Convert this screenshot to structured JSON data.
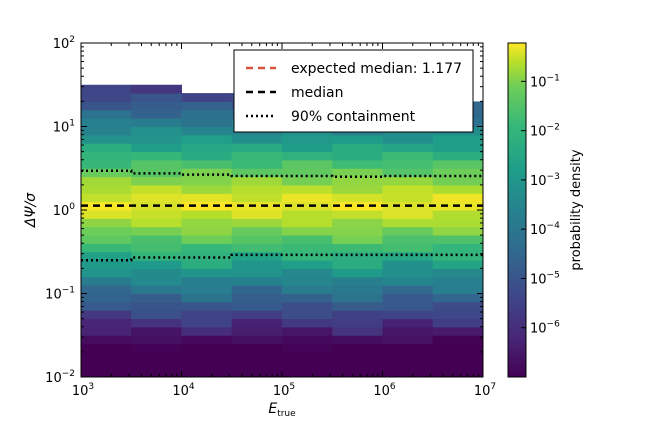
{
  "chart_data": {
    "type": "heatmap",
    "title": "",
    "xlabel": "E_true",
    "ylabel": "ΔΨ/σ",
    "x_scale": "log",
    "y_scale": "log",
    "xlim": [
      1000,
      10000000
    ],
    "ylim": [
      0.01,
      100
    ],
    "x_ticks": [
      {
        "value": 1000,
        "base": "10",
        "exp": "3"
      },
      {
        "value": 10000,
        "base": "10",
        "exp": "4"
      },
      {
        "value": 100000,
        "base": "10",
        "exp": "5"
      },
      {
        "value": 1000000,
        "base": "10",
        "exp": "6"
      },
      {
        "value": 10000000,
        "base": "10",
        "exp": "7"
      }
    ],
    "y_ticks": [
      {
        "value": 0.01,
        "base": "10",
        "exp": "−2"
      },
      {
        "value": 0.1,
        "base": "10",
        "exp": "−1"
      },
      {
        "value": 1,
        "base": "10",
        "exp": "0"
      },
      {
        "value": 10,
        "base": "10",
        "exp": "1"
      },
      {
        "value": 100,
        "base": "10",
        "exp": "2"
      }
    ],
    "colorbar": {
      "label": "probability density",
      "scale": "log",
      "colormap": "viridis",
      "range": [
        1e-07,
        0.6
      ],
      "ticks": [
        {
          "value": 1e-06,
          "base": "10",
          "exp": "−6"
        },
        {
          "value": 1e-05,
          "base": "10",
          "exp": "−5"
        },
        {
          "value": 0.0001,
          "base": "10",
          "exp": "−4"
        },
        {
          "value": 0.001,
          "base": "10",
          "exp": "−3"
        },
        {
          "value": 0.01,
          "base": "10",
          "exp": "−2"
        },
        {
          "value": 0.1,
          "base": "10",
          "exp": "−1"
        }
      ]
    },
    "heatmap": {
      "x_bin_edges_log10": [
        3.0,
        3.5,
        4.0,
        4.5,
        5.0,
        5.5,
        6.0,
        6.5,
        7.0
      ],
      "y_bin_edges_log10": [
        -2.0,
        -1.9,
        -1.8,
        -1.7,
        -1.6,
        -1.5,
        -1.4,
        -1.3,
        -1.2,
        -1.1,
        -1.0,
        -0.9,
        -0.8,
        -0.7,
        -0.6,
        -0.5,
        -0.4,
        -0.3,
        -0.2,
        -0.1,
        0.0,
        0.1,
        0.2,
        0.3,
        0.4,
        0.5,
        0.6,
        0.7,
        0.8,
        0.9,
        1.0,
        1.1,
        1.2,
        1.3,
        1.4,
        1.5
      ],
      "column_top_log10": [
        1.5,
        1.5,
        1.4,
        1.4,
        1.3,
        1.3,
        1.3,
        1.3
      ],
      "peak_log10_y": 0.07,
      "peak_density": 0.5,
      "falloff_log10_per_decade": 4.0
    },
    "lines": [
      {
        "name": "expected median: 1.177",
        "style": "dashed",
        "color": "#d9533f",
        "y": [
          1.177,
          1.177
        ]
      },
      {
        "name": "median",
        "style": "dashed",
        "color": "#000000",
        "x": [
          1000,
          10000000
        ],
        "y": [
          1.13,
          1.13
        ]
      },
      {
        "name": "90% containment",
        "style": "dotted",
        "color": "#000000",
        "x": [
          1000,
          3162,
          3162,
          10000,
          10000,
          31623,
          31623,
          100000,
          100000,
          316228,
          316228,
          1000000,
          1000000,
          3162278,
          3162278,
          10000000
        ],
        "y_upper": [
          2.95,
          2.95,
          2.75,
          2.75,
          2.65,
          2.65,
          2.55,
          2.55,
          2.55,
          2.55,
          2.5,
          2.5,
          2.55,
          2.55,
          2.55,
          2.55
        ],
        "y_lower": [
          0.25,
          0.25,
          0.27,
          0.27,
          0.27,
          0.27,
          0.29,
          0.29,
          0.29,
          0.29,
          0.29,
          0.29,
          0.29,
          0.29,
          0.29,
          0.29
        ]
      }
    ],
    "legend": {
      "placement": "top-right",
      "entries": [
        "expected median: 1.177",
        "median",
        "90% containment"
      ]
    },
    "colors": {
      "median_expected": "#d9533f",
      "median": "#000000",
      "containment": "#000000"
    }
  }
}
